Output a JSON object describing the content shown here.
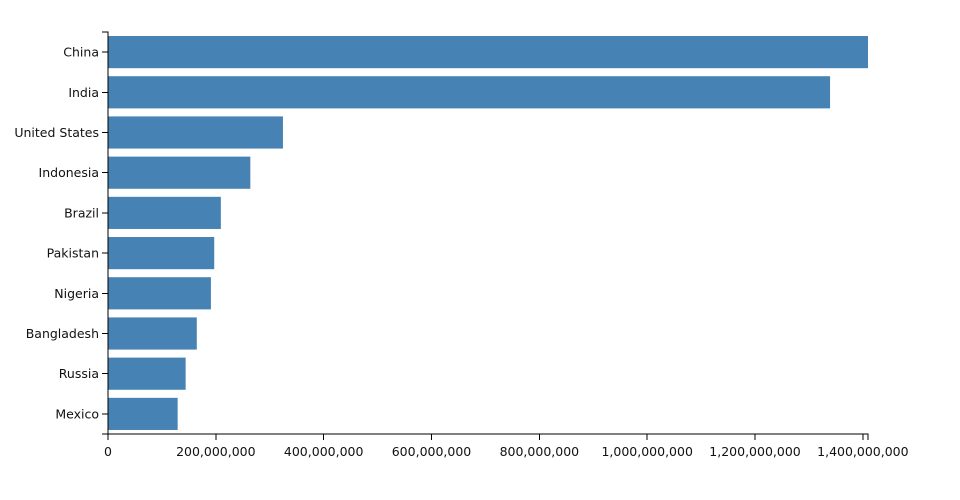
{
  "chart_data": {
    "type": "bar",
    "orientation": "horizontal",
    "categories": [
      "China",
      "India",
      "United States",
      "Indonesia",
      "Brazil",
      "Pakistan",
      "Nigeria",
      "Bangladesh",
      "Russia",
      "Mexico"
    ],
    "values": [
      1409517397,
      1339180127,
      324459463,
      263991379,
      209288278,
      197015955,
      190886311,
      164669751,
      143989754,
      129163276
    ],
    "xlim": [
      0,
      1409517397
    ],
    "xticks": [
      0,
      200000000,
      400000000,
      600000000,
      800000000,
      1000000000,
      1200000000,
      1400000000
    ],
    "xtick_labels": [
      "0",
      "200,000,000",
      "400,000,000",
      "600,000,000",
      "800,000,000",
      "1,000,000,000",
      "1,200,000,000",
      "1,400,000,000"
    ],
    "title": "",
    "xlabel": "",
    "ylabel": "",
    "grid": false,
    "bar_color": "#4682b4"
  }
}
